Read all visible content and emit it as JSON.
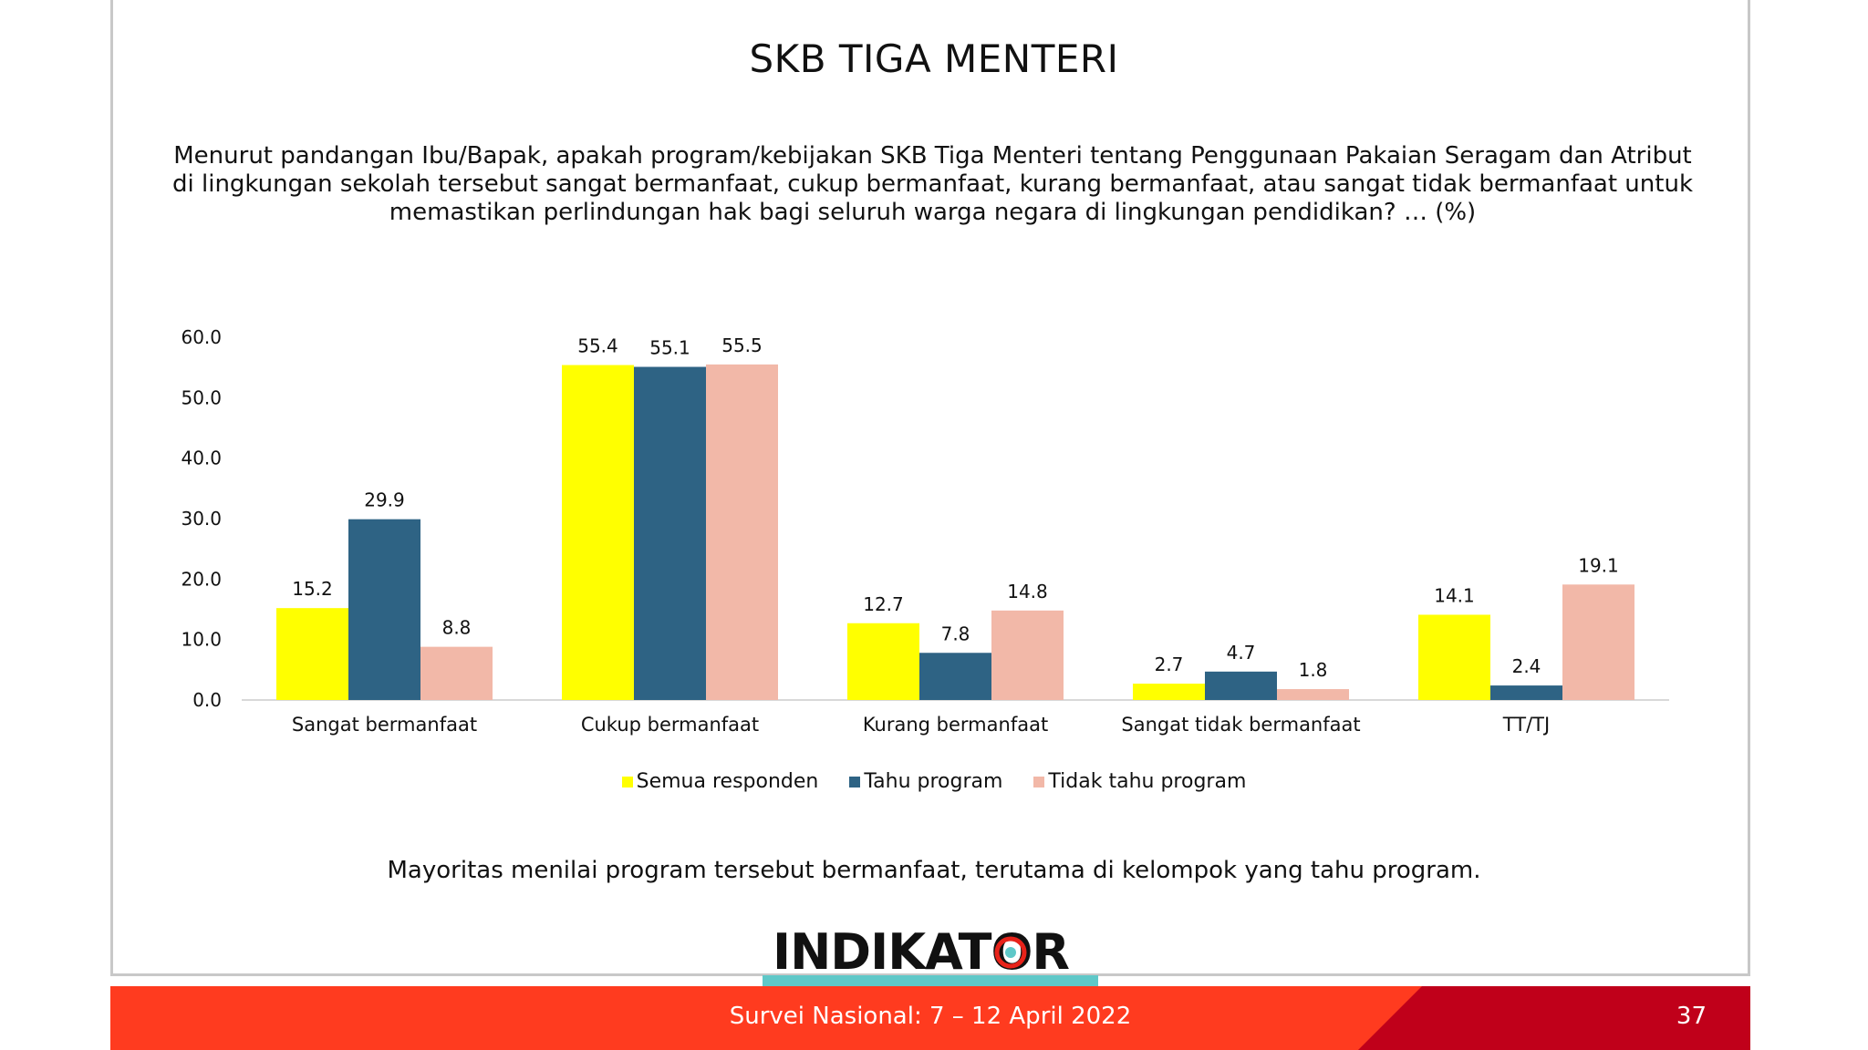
{
  "slide": {
    "title": "SKB TIGA MENTERI",
    "question": "Menurut pandangan Ibu/Bapak, apakah program/kebijakan SKB Tiga Menteri tentang Penggunaan Pakaian Seragam dan Atribut di lingkungan sekolah tersebut sangat bermanfaat, cukup bermanfaat, kurang bermanfaat, atau sangat tidak bermanfaat untuk memastikan perlindungan hak bagi seluruh warga negara di lingkungan pendidikan? … (%)",
    "note": "Mayoritas menilai program tersebut bermanfaat, terutama di kelompok yang tahu program.",
    "logo": "INDIKATOR",
    "footer": "Survei Nasional: 7 – 12 April 2022",
    "page_number": "37"
  },
  "chart_data": {
    "type": "bar",
    "title": "",
    "xlabel": "",
    "ylabel": "",
    "ylim": [
      0,
      60
    ],
    "yticks": [
      "0.0",
      "10.0",
      "20.0",
      "30.0",
      "40.0",
      "50.0",
      "60.0"
    ],
    "categories": [
      "Sangat bermanfaat",
      "Cukup bermanfaat",
      "Kurang bermanfaat",
      "Sangat tidak bermanfaat",
      "TT/TJ"
    ],
    "series": [
      {
        "name": "Semua responden",
        "color": "#ffff00",
        "values": [
          15.2,
          55.4,
          12.7,
          2.7,
          14.1
        ]
      },
      {
        "name": "Tahu program",
        "color": "#2e6384",
        "values": [
          29.9,
          55.1,
          7.8,
          4.7,
          2.4
        ]
      },
      {
        "name": "Tidak tahu program",
        "color": "#f2b8a8",
        "values": [
          8.8,
          55.5,
          14.8,
          1.8,
          19.1
        ]
      }
    ],
    "grid": false,
    "legend_position": "bottom"
  },
  "colors": {
    "footer": "#ff3b1f",
    "footer_dark": "#c0001a",
    "teal": "#5fc8c8",
    "logo_accent": "#e8231a"
  }
}
